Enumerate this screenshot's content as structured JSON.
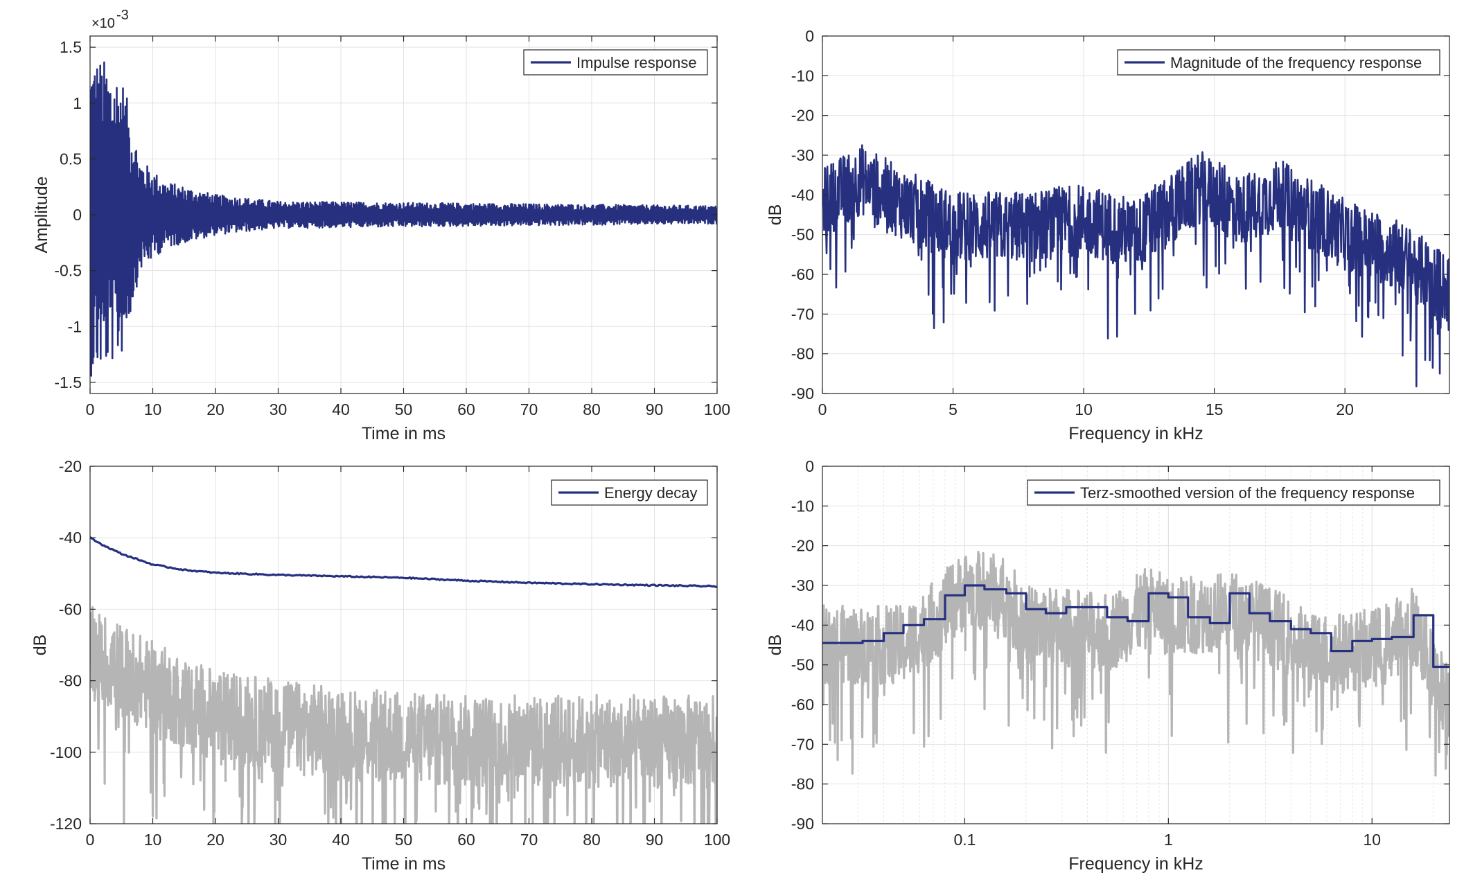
{
  "colors": {
    "primary": "#26307f",
    "gray": "#b5b5b5",
    "grid": "#e2e2e2",
    "axis": "#262626"
  },
  "chart_data": [
    {
      "id": "impulse",
      "type": "line",
      "xlabel": "Time in ms",
      "ylabel": "Amplitude",
      "xlim": [
        0,
        100
      ],
      "ylim": [
        -1.6,
        1.6
      ],
      "xticks": [
        0,
        10,
        20,
        30,
        40,
        50,
        60,
        70,
        80,
        90,
        100
      ],
      "yticks": [
        -1.5,
        -1,
        -0.5,
        0,
        0.5,
        1,
        1.5
      ],
      "ytick_labels": [
        "-1.5",
        "-1",
        "-0.5",
        "0",
        "0.5",
        "1",
        "1.5"
      ],
      "y_exponent_label": "×10",
      "y_exponent_power": "-3",
      "legend": [
        "Impulse response"
      ],
      "legend_position": "top-right",
      "grid": true,
      "series": [
        {
          "name": "Impulse response",
          "color": "#26307f",
          "kind": "impulse",
          "envelope": [
            [
              0,
              1.45
            ],
            [
              2,
              1.4
            ],
            [
              5,
              1.27
            ],
            [
              8,
              0.5
            ],
            [
              12,
              0.3
            ],
            [
              20,
              0.18
            ],
            [
              30,
              0.12
            ],
            [
              100,
              0.08
            ]
          ]
        }
      ]
    },
    {
      "id": "magnitude",
      "type": "line",
      "xlabel": "Frequency in kHz",
      "ylabel": "dB",
      "xlim": [
        0,
        24
      ],
      "ylim": [
        -90,
        0
      ],
      "xticks": [
        0,
        5,
        10,
        15,
        20
      ],
      "yticks": [
        0,
        -10,
        -20,
        -30,
        -40,
        -50,
        -60,
        -70,
        -80,
        -90
      ],
      "legend": [
        "Magnitude of the frequency response"
      ],
      "legend_position": "top-right",
      "grid": true,
      "series": [
        {
          "name": "Magnitude of the frequency response",
          "color": "#26307f",
          "kind": "noisy",
          "trend": [
            [
              0,
              -42
            ],
            [
              1.5,
              -36
            ],
            [
              3,
              -42
            ],
            [
              5,
              -48
            ],
            [
              8,
              -48
            ],
            [
              10,
              -46
            ],
            [
              12,
              -50
            ],
            [
              14.5,
              -38
            ],
            [
              16,
              -44
            ],
            [
              17.5,
              -40
            ],
            [
              20,
              -50
            ],
            [
              22,
              -55
            ],
            [
              24,
              -64
            ]
          ],
          "spread": 9
        }
      ]
    },
    {
      "id": "energy_decay",
      "type": "line",
      "xlabel": "Time in ms",
      "ylabel": "dB",
      "xlim": [
        0,
        100
      ],
      "ylim": [
        -120,
        -20
      ],
      "xticks": [
        0,
        10,
        20,
        30,
        40,
        50,
        60,
        70,
        80,
        90,
        100
      ],
      "yticks": [
        -20,
        -40,
        -60,
        -80,
        -100,
        -120
      ],
      "legend": [
        "Energy decay"
      ],
      "legend_position": "top-right",
      "grid": true,
      "series": [
        {
          "name": "Energy decay",
          "color": "#26307f",
          "kind": "line",
          "points": [
            [
              0,
              -40
            ],
            [
              2,
              -42
            ],
            [
              5,
              -44.5
            ],
            [
              10,
              -47.5
            ],
            [
              15,
              -49
            ],
            [
              20,
              -49.8
            ],
            [
              30,
              -50.4
            ],
            [
              40,
              -50.8
            ],
            [
              50,
              -51.2
            ],
            [
              60,
              -52
            ],
            [
              70,
              -52.6
            ],
            [
              80,
              -53
            ],
            [
              90,
              -53.3
            ],
            [
              100,
              -53.6
            ]
          ]
        },
        {
          "color": "#b5b5b5",
          "kind": "noisy",
          "trend": [
            [
              0,
              -72
            ],
            [
              10,
              -82
            ],
            [
              20,
              -90
            ],
            [
              40,
              -95
            ],
            [
              60,
              -97
            ],
            [
              80,
              -97
            ],
            [
              100,
              -97
            ]
          ],
          "spread": 13
        }
      ]
    },
    {
      "id": "terz",
      "type": "line",
      "xlabel": "Frequency in kHz",
      "ylabel": "dB",
      "xscale": "log",
      "xlim": [
        0.02,
        24
      ],
      "ylim": [
        -90,
        0
      ],
      "xticks": [
        0.1,
        1,
        10
      ],
      "xtick_labels": [
        "0.1",
        "1",
        "10"
      ],
      "yticks": [
        0,
        -10,
        -20,
        -30,
        -40,
        -50,
        -60,
        -70,
        -80,
        -90
      ],
      "legend": [
        "Terz-smoothed version of the frequency response"
      ],
      "legend_position": "top-right",
      "grid": true,
      "series": [
        {
          "name": "Terz-smoothed version of the frequency response",
          "color": "#26307f",
          "kind": "step",
          "points": [
            [
              0.02,
              -44.5
            ],
            [
              0.025,
              -44.5
            ],
            [
              0.0315,
              -44
            ],
            [
              0.04,
              -42
            ],
            [
              0.05,
              -40
            ],
            [
              0.063,
              -38.5
            ],
            [
              0.08,
              -32.5
            ],
            [
              0.1,
              -30
            ],
            [
              0.125,
              -31
            ],
            [
              0.16,
              -32
            ],
            [
              0.2,
              -36
            ],
            [
              0.25,
              -37
            ],
            [
              0.315,
              -35.5
            ],
            [
              0.4,
              -35.5
            ],
            [
              0.5,
              -38
            ],
            [
              0.63,
              -39
            ],
            [
              0.8,
              -32
            ],
            [
              1.0,
              -33
            ],
            [
              1.25,
              -38
            ],
            [
              1.6,
              -39.5
            ],
            [
              2.0,
              -32
            ],
            [
              2.5,
              -37
            ],
            [
              3.15,
              -39
            ],
            [
              4.0,
              -41
            ],
            [
              5.0,
              -42
            ],
            [
              6.3,
              -46.5
            ],
            [
              8.0,
              -44
            ],
            [
              10.0,
              -43.5
            ],
            [
              12.5,
              -43
            ],
            [
              16.0,
              -37.5
            ],
            [
              20.0,
              -50.5
            ],
            [
              24,
              -50.5
            ]
          ]
        },
        {
          "color": "#b5b5b5",
          "kind": "noisy",
          "trend": [
            [
              0.02,
              -45
            ],
            [
              0.05,
              -45
            ],
            [
              0.08,
              -36
            ],
            [
              0.1,
              -31
            ],
            [
              0.15,
              -32
            ],
            [
              0.2,
              -40
            ],
            [
              0.5,
              -42
            ],
            [
              0.8,
              -35
            ],
            [
              1.0,
              -38
            ],
            [
              2.0,
              -36
            ],
            [
              5.0,
              -47
            ],
            [
              10.0,
              -46
            ],
            [
              16.0,
              -40
            ],
            [
              20.0,
              -52
            ],
            [
              24,
              -60
            ]
          ],
          "spread": 10
        }
      ]
    }
  ]
}
